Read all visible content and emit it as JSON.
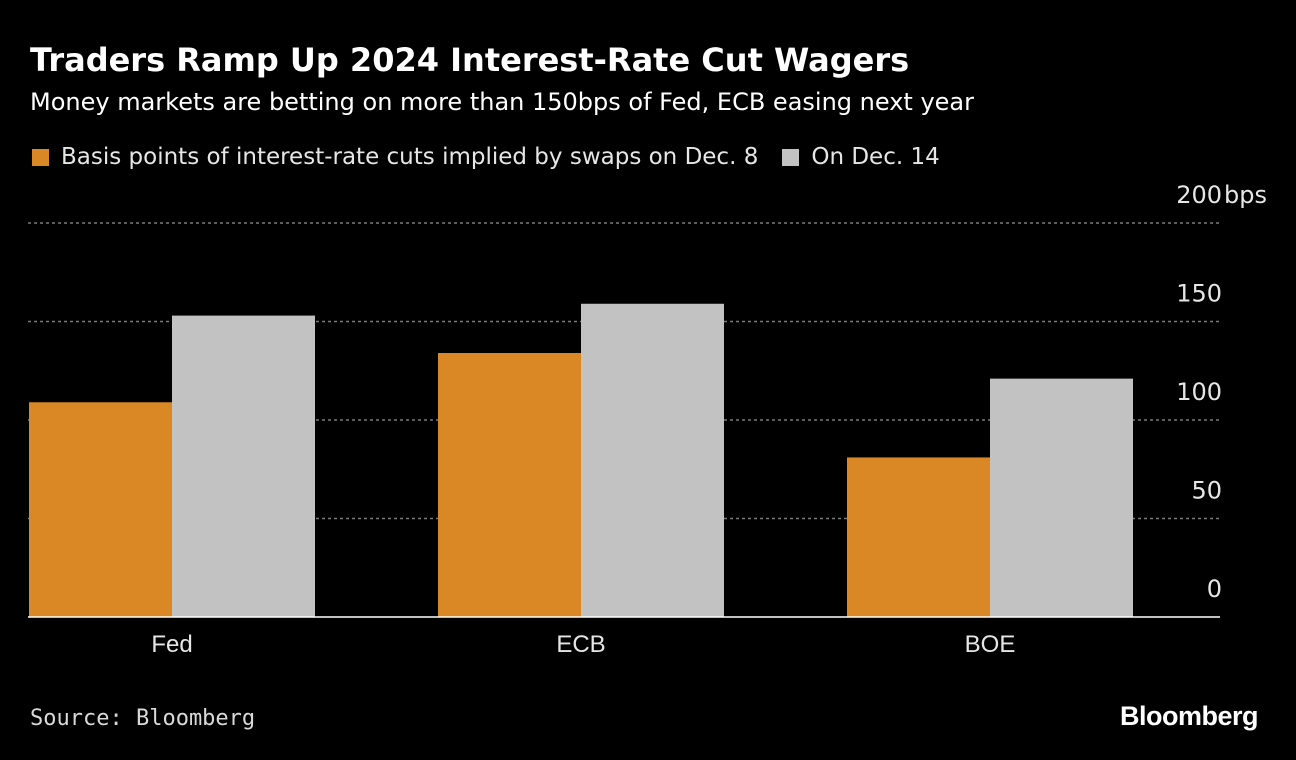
{
  "colors": {
    "background": "#000000",
    "series_dec8": "#da8825",
    "series_dec14": "#c2c2c2",
    "grid": "#7a7a7a",
    "axis": "#ffffff",
    "text": "#ffffff"
  },
  "chart_data": {
    "type": "bar",
    "title": "Traders Ramp Up 2024 Interest-Rate Cut Wagers",
    "subtitle": "Money markets are betting on more than 150bps of Fed, ECB easing next year",
    "categories": [
      "Fed",
      "ECB",
      "BOE"
    ],
    "series": [
      {
        "name": "Basis points of interest-rate cuts implied by swaps on Dec. 8",
        "values": [
          109,
          134,
          81
        ]
      },
      {
        "name": "On Dec. 14",
        "values": [
          153,
          159,
          121
        ]
      }
    ],
    "ylim": [
      0,
      200
    ],
    "y_ticks": [
      0,
      50,
      100,
      150,
      200
    ],
    "y_tick_labels": [
      "0",
      "50",
      "100",
      "150",
      "200"
    ],
    "y_unit": "bps",
    "xlabel": "",
    "ylabel": "",
    "grid": true,
    "legend_position": "top-left"
  },
  "footer": {
    "source": "Source: Bloomberg",
    "logo": "Bloomberg"
  }
}
